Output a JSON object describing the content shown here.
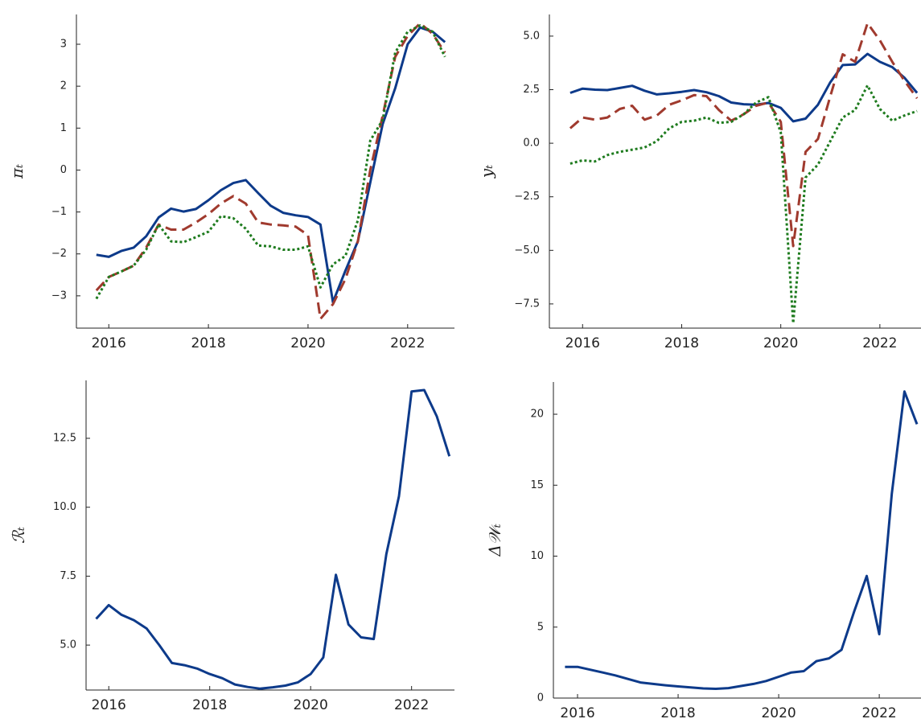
{
  "chart_data": [
    {
      "type": "line",
      "ylabel": "πₜ",
      "x": [
        2015.75,
        2016,
        2016.25,
        2016.5,
        2016.75,
        2017,
        2017.25,
        2017.5,
        2017.75,
        2018,
        2018.25,
        2018.5,
        2018.75,
        2019,
        2019.25,
        2019.5,
        2019.75,
        2020,
        2020.25,
        2020.5,
        2020.75,
        2021,
        2021.25,
        2021.5,
        2021.75,
        2022,
        2022.25,
        2022.5,
        2022.75
      ],
      "xlim": [
        2015.35,
        2022.94
      ],
      "xticks": [
        2016,
        2018,
        2020,
        2022
      ],
      "ylim": [
        -3.77,
        3.71
      ],
      "yticks": [
        {
          "value": -3,
          "label": "−3"
        },
        {
          "value": -2,
          "label": "−2"
        },
        {
          "value": -1,
          "label": "−1"
        },
        0,
        1,
        2,
        3
      ],
      "series": [
        {
          "color": "#0d3a8a",
          "dash": "solid",
          "values": [
            -2.02,
            -2.07,
            -1.93,
            -1.85,
            -1.58,
            -1.13,
            -0.92,
            -0.99,
            -0.93,
            -0.72,
            -0.48,
            -0.31,
            -0.24,
            -0.55,
            -0.85,
            -1.02,
            -1.08,
            -1.12,
            -1.3,
            -3.15,
            -2.4,
            -1.7,
            -0.3,
            1.1,
            1.95,
            3.0,
            3.4,
            3.3,
            3.05
          ]
        },
        {
          "color": "#a03a2e",
          "dash": "dashed",
          "values": [
            -2.87,
            -2.55,
            -2.42,
            -2.28,
            -1.85,
            -1.3,
            -1.42,
            -1.42,
            -1.25,
            -1.05,
            -0.8,
            -0.62,
            -0.8,
            -1.25,
            -1.3,
            -1.32,
            -1.35,
            -1.55,
            -3.55,
            -3.2,
            -2.6,
            -1.7,
            0.0,
            1.3,
            2.7,
            3.2,
            3.5,
            3.25,
            2.8
          ]
        },
        {
          "color": "#1e7b1e",
          "dash": "dotted",
          "values": [
            -3.07,
            -2.55,
            -2.42,
            -2.28,
            -1.9,
            -1.3,
            -1.7,
            -1.72,
            -1.6,
            -1.47,
            -1.1,
            -1.15,
            -1.4,
            -1.8,
            -1.82,
            -1.9,
            -1.9,
            -1.82,
            -2.8,
            -2.25,
            -2.05,
            -1.2,
            0.7,
            1.2,
            2.8,
            3.3,
            3.45,
            3.3,
            2.7
          ]
        }
      ]
    },
    {
      "type": "line",
      "ylabel": "yₜ",
      "x": [
        2015.75,
        2016,
        2016.25,
        2016.5,
        2016.75,
        2017,
        2017.25,
        2017.5,
        2017.75,
        2018,
        2018.25,
        2018.5,
        2018.75,
        2019,
        2019.25,
        2019.5,
        2019.75,
        2020,
        2020.25,
        2020.5,
        2020.75,
        2021,
        2021.25,
        2021.5,
        2021.75,
        2022,
        2022.25,
        2022.5,
        2022.75
      ],
      "xlim": [
        2015.33,
        2022.83
      ],
      "xticks": [
        2016,
        2018,
        2020,
        2022
      ],
      "ylim": [
        -8.63,
        6.01
      ],
      "yticks": [
        {
          "value": -7.5,
          "label": "−7.5"
        },
        {
          "value": -5,
          "label": "−5.0"
        },
        {
          "value": -2.5,
          "label": "−2.5"
        },
        {
          "value": 0,
          "label": "0.0"
        },
        2.5,
        {
          "value": 5,
          "label": "5.0"
        }
      ],
      "series": [
        {
          "color": "#0d3a8a",
          "dash": "solid",
          "values": [
            2.35,
            2.55,
            2.5,
            2.48,
            2.58,
            2.68,
            2.45,
            2.28,
            2.33,
            2.4,
            2.48,
            2.38,
            2.2,
            1.9,
            1.82,
            1.8,
            1.88,
            1.65,
            1.02,
            1.15,
            1.8,
            2.85,
            3.65,
            3.68,
            4.17,
            3.8,
            3.55,
            3.05,
            2.35
          ]
        },
        {
          "color": "#a03a2e",
          "dash": "dashed",
          "values": [
            0.7,
            1.2,
            1.1,
            1.2,
            1.6,
            1.75,
            1.1,
            1.3,
            1.8,
            2.0,
            2.25,
            2.2,
            1.55,
            1.05,
            1.35,
            1.75,
            1.9,
            1.0,
            -4.8,
            -0.4,
            0.2,
            2.2,
            4.15,
            3.8,
            5.6,
            4.8,
            3.8,
            2.9,
            2.1
          ]
        },
        {
          "color": "#1e7b1e",
          "dash": "dotted",
          "values": [
            -0.95,
            -0.8,
            -0.85,
            -0.55,
            -0.4,
            -0.3,
            -0.2,
            0.1,
            0.7,
            1.0,
            1.05,
            1.2,
            0.95,
            1.0,
            1.35,
            1.9,
            2.15,
            0.5,
            -8.4,
            -1.6,
            -1.0,
            0.1,
            1.2,
            1.55,
            2.7,
            1.6,
            1.05,
            1.3,
            1.5
          ]
        }
      ]
    },
    {
      "type": "line",
      "ylabel": "ℛₜ",
      "x": [
        2015.75,
        2016,
        2016.25,
        2016.5,
        2016.75,
        2017,
        2017.25,
        2017.5,
        2017.75,
        2018,
        2018.25,
        2018.5,
        2018.75,
        2019,
        2019.25,
        2019.5,
        2019.75,
        2020,
        2020.25,
        2020.5,
        2020.75,
        2021,
        2021.25,
        2021.5,
        2021.75,
        2022,
        2022.25,
        2022.5,
        2022.75
      ],
      "xlim": [
        2015.55,
        2022.85
      ],
      "xticks": [
        2016,
        2018,
        2020,
        2022
      ],
      "ylim": [
        3.37,
        14.6
      ],
      "yticks": [
        {
          "value": 5,
          "label": "5.0"
        },
        7.5,
        {
          "value": 10,
          "label": "10.0"
        },
        12.5
      ],
      "series": [
        {
          "color": "#0d3a8a",
          "dash": "solid",
          "values": [
            5.95,
            6.45,
            6.1,
            5.9,
            5.6,
            5.0,
            4.35,
            4.27,
            4.15,
            3.95,
            3.8,
            3.57,
            3.48,
            3.42,
            3.47,
            3.53,
            3.65,
            3.95,
            4.55,
            7.55,
            5.75,
            5.28,
            5.22,
            8.3,
            10.4,
            14.2,
            14.25,
            13.3,
            11.85
          ]
        }
      ]
    },
    {
      "type": "line",
      "ylabel": "Δ𝒲ₜ",
      "x": [
        2015.75,
        2016,
        2016.25,
        2016.5,
        2016.75,
        2017,
        2017.25,
        2017.5,
        2017.75,
        2018,
        2018.25,
        2018.5,
        2018.75,
        2019,
        2019.25,
        2019.5,
        2019.75,
        2020,
        2020.25,
        2020.5,
        2020.75,
        2021,
        2021.25,
        2021.5,
        2021.75,
        2022,
        2022.25,
        2022.5,
        2022.75
      ],
      "xlim": [
        2015.52,
        2022.83
      ],
      "xticks": [
        2016,
        2018,
        2020,
        2022
      ],
      "ylim": [
        0,
        22.27
      ],
      "yticks": [
        0,
        5,
        10,
        15,
        20
      ],
      "series": [
        {
          "color": "#0d3a8a",
          "dash": "solid",
          "values": [
            2.2,
            2.2,
            2.0,
            1.8,
            1.6,
            1.35,
            1.1,
            1.0,
            0.9,
            0.82,
            0.75,
            0.68,
            0.65,
            0.7,
            0.85,
            1.0,
            1.2,
            1.5,
            1.8,
            1.9,
            2.6,
            2.8,
            3.4,
            6.1,
            8.6,
            4.5,
            14.4,
            21.6,
            19.3
          ]
        }
      ]
    }
  ]
}
